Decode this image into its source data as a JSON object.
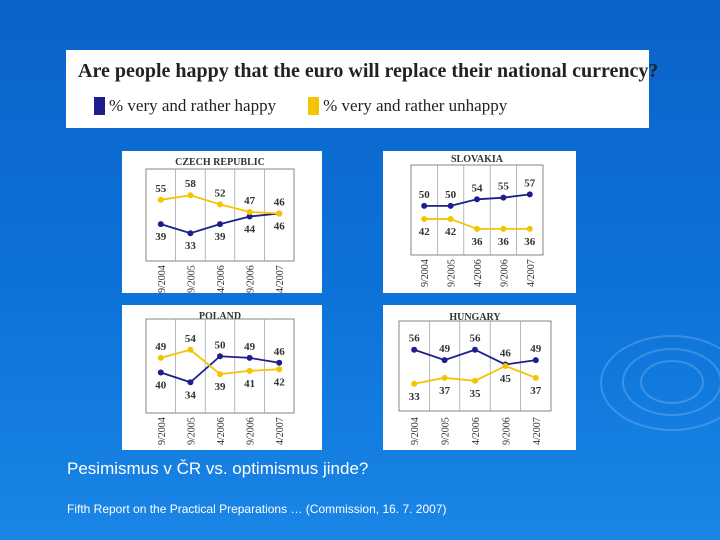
{
  "header": {
    "title": "Are people happy that the euro will replace their national currency?",
    "legend": [
      {
        "label": "% very and rather happy",
        "color": "#1d1d8c"
      },
      {
        "label": "% very and rather unhappy",
        "color": "#f5c400"
      }
    ]
  },
  "chart_data": [
    {
      "type": "line",
      "title": "CZECH REPUBLIC",
      "categories": [
        "9/2004",
        "9/2005",
        "4/2006",
        "9/2006",
        "4/2007"
      ],
      "series": [
        {
          "name": "% very and rather happy",
          "values": [
            39,
            33,
            39,
            44,
            46
          ]
        },
        {
          "name": "% very and rather unhappy",
          "values": [
            55,
            58,
            52,
            47,
            46
          ]
        }
      ],
      "ylim": [
        20,
        70
      ]
    },
    {
      "type": "line",
      "title": "SLOVAKIA",
      "categories": [
        "9/2004",
        "9/2005",
        "4/2006",
        "9/2006",
        "4/2007"
      ],
      "series": [
        {
          "name": "% very and rather happy",
          "values": [
            50,
            50,
            54,
            55,
            57
          ]
        },
        {
          "name": "% very and rather unhappy",
          "values": [
            42,
            42,
            36,
            36,
            36
          ]
        }
      ],
      "ylim": [
        25,
        70
      ]
    },
    {
      "type": "line",
      "title": "POLAND",
      "categories": [
        "9/2004",
        "9/2005",
        "4/2006",
        "9/2006",
        "4/2007"
      ],
      "series": [
        {
          "name": "% very and rather happy",
          "values": [
            40,
            34,
            50,
            49,
            46
          ]
        },
        {
          "name": "% very and rather unhappy",
          "values": [
            49,
            54,
            39,
            41,
            42
          ]
        }
      ],
      "ylim": [
        20,
        68
      ]
    },
    {
      "type": "line",
      "title": "HUNGARY",
      "categories": [
        "9/2004",
        "9/2005",
        "4/2006",
        "9/2006",
        "4/2007"
      ],
      "series": [
        {
          "name": "% very and rather happy",
          "values": [
            56,
            49,
            56,
            46,
            49
          ]
        },
        {
          "name": "% very and rather unhappy",
          "values": [
            33,
            37,
            35,
            45,
            37
          ]
        }
      ],
      "ylim": [
        20,
        70
      ]
    }
  ],
  "caption": "Pesimismus v ČR vs. optimismus jinde?",
  "source": "Fifth Report on the Practical Preparations … (Commission, 16. 7. 2007)"
}
